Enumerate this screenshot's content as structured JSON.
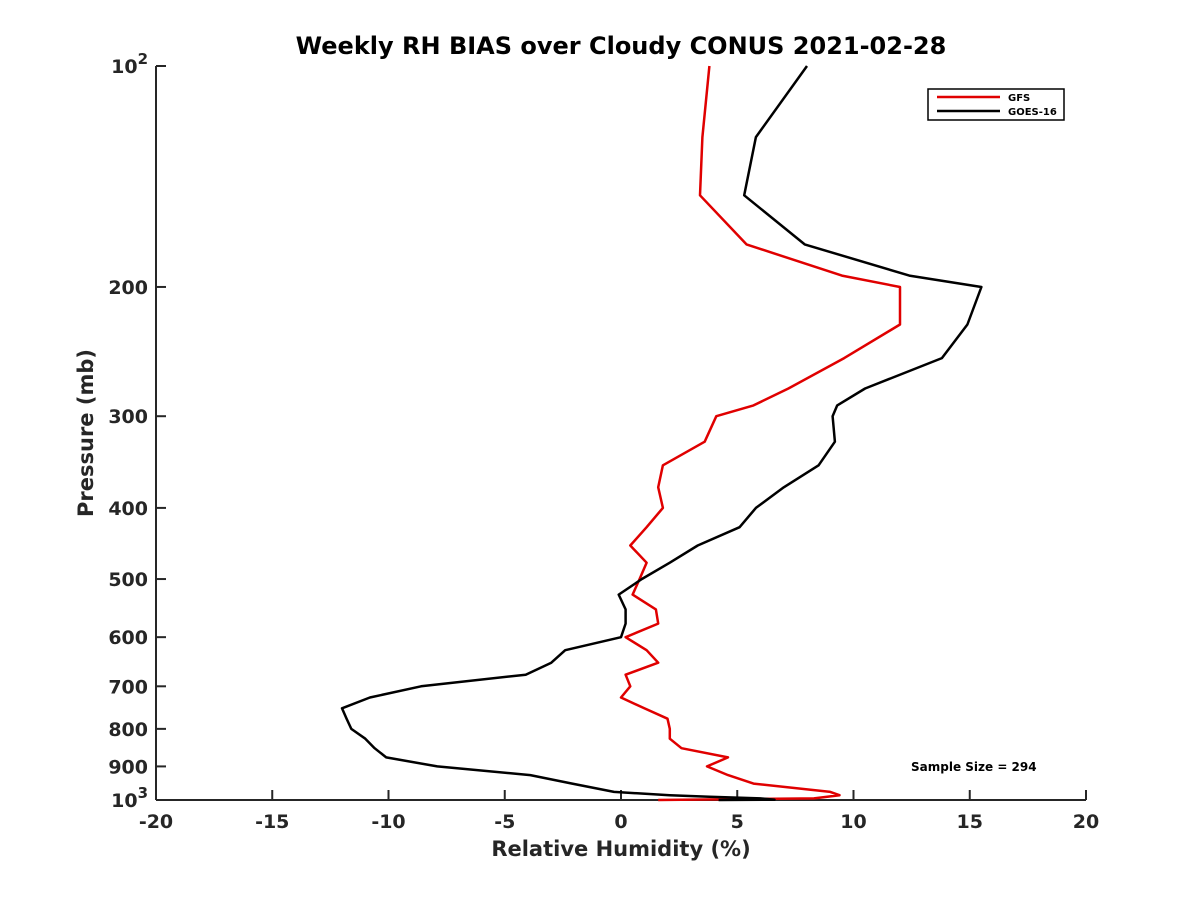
{
  "chart_data": {
    "type": "line",
    "title": "Weekly RH BIAS over Cloudy CONUS 2021-02-28",
    "xlabel": "Relative Humidity (%)",
    "ylabel": "Pressure (mb)",
    "xlim": [
      -20,
      20
    ],
    "ylim": [
      1000,
      100
    ],
    "y_scale": "log",
    "y_reversed": true,
    "x_ticks": [
      "-20",
      "-15",
      "-10",
      "-5",
      "0",
      "5",
      "10",
      "15",
      "20"
    ],
    "y_ticks": [
      {
        "value": 100,
        "base": "10",
        "exp": "2"
      },
      {
        "value": 200,
        "label": "200"
      },
      {
        "value": 300,
        "label": "300"
      },
      {
        "value": 400,
        "label": "400"
      },
      {
        "value": 500,
        "label": "500"
      },
      {
        "value": 600,
        "label": "600"
      },
      {
        "value": 700,
        "label": "700"
      },
      {
        "value": 800,
        "label": "800"
      },
      {
        "value": 900,
        "label": "900"
      },
      {
        "value": 1000,
        "base": "10",
        "exp": "3"
      }
    ],
    "grid": false,
    "legend_position": "top-right",
    "series": [
      {
        "name": "GFS",
        "color": "#e00000",
        "points": [
          [
            3.8,
            100
          ],
          [
            3.5,
            125
          ],
          [
            3.4,
            150
          ],
          [
            5.4,
            175
          ],
          [
            9.5,
            193
          ],
          [
            12.0,
            200
          ],
          [
            12.0,
            225
          ],
          [
            9.6,
            250
          ],
          [
            7.2,
            275
          ],
          [
            5.7,
            290
          ],
          [
            4.1,
            300
          ],
          [
            3.6,
            325
          ],
          [
            1.8,
            350
          ],
          [
            1.6,
            375
          ],
          [
            1.8,
            400
          ],
          [
            1.1,
            425
          ],
          [
            0.4,
            450
          ],
          [
            1.1,
            475
          ],
          [
            0.8,
            500
          ],
          [
            0.5,
            525
          ],
          [
            1.5,
            550
          ],
          [
            1.6,
            575
          ],
          [
            0.2,
            600
          ],
          [
            1.1,
            625
          ],
          [
            1.6,
            650
          ],
          [
            0.2,
            675
          ],
          [
            0.4,
            700
          ],
          [
            0.0,
            725
          ],
          [
            1.0,
            750
          ],
          [
            2.0,
            775
          ],
          [
            2.1,
            800
          ],
          [
            2.1,
            825
          ],
          [
            2.6,
            850
          ],
          [
            4.6,
            875
          ],
          [
            3.7,
            900
          ],
          [
            4.6,
            925
          ],
          [
            5.7,
            950
          ],
          [
            9.0,
            975
          ],
          [
            9.4,
            985
          ],
          [
            8.3,
            995
          ],
          [
            1.6,
            1000
          ]
        ]
      },
      {
        "name": "GOES-16",
        "color": "#000000",
        "points": [
          [
            8.0,
            100
          ],
          [
            5.8,
            125
          ],
          [
            5.3,
            150
          ],
          [
            7.9,
            175
          ],
          [
            12.4,
            193
          ],
          [
            15.5,
            200
          ],
          [
            14.9,
            225
          ],
          [
            13.8,
            250
          ],
          [
            10.5,
            275
          ],
          [
            9.3,
            290
          ],
          [
            9.1,
            300
          ],
          [
            9.2,
            325
          ],
          [
            8.5,
            350
          ],
          [
            7.0,
            375
          ],
          [
            5.8,
            400
          ],
          [
            5.1,
            425
          ],
          [
            3.3,
            450
          ],
          [
            2.1,
            475
          ],
          [
            0.9,
            500
          ],
          [
            -0.1,
            525
          ],
          [
            0.2,
            550
          ],
          [
            0.2,
            575
          ],
          [
            0.0,
            600
          ],
          [
            -2.4,
            625
          ],
          [
            -3.0,
            650
          ],
          [
            -4.1,
            675
          ],
          [
            -8.6,
            700
          ],
          [
            -10.8,
            725
          ],
          [
            -12.0,
            750
          ],
          [
            -11.8,
            775
          ],
          [
            -11.6,
            800
          ],
          [
            -11.0,
            825
          ],
          [
            -10.6,
            850
          ],
          [
            -10.1,
            875
          ],
          [
            -7.9,
            900
          ],
          [
            -3.9,
            925
          ],
          [
            -2.1,
            950
          ],
          [
            -0.3,
            975
          ],
          [
            2.1,
            985
          ],
          [
            3.8,
            990
          ],
          [
            6.0,
            995
          ],
          [
            6.3,
            997
          ],
          [
            6.6,
            999
          ],
          [
            4.2,
            1000
          ]
        ]
      }
    ],
    "annotation": "Sample Size = 294"
  }
}
